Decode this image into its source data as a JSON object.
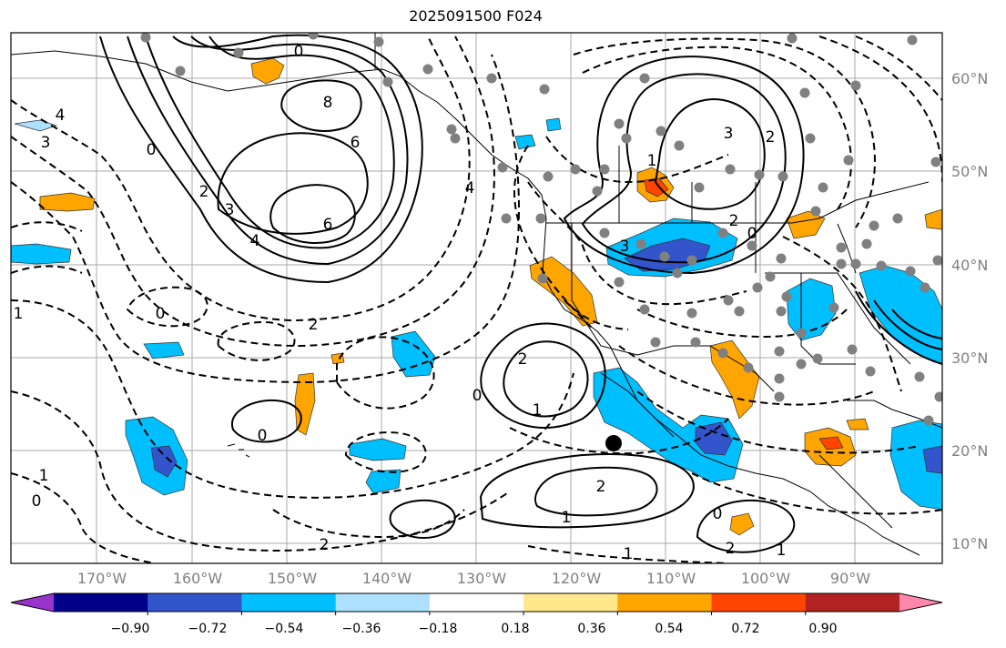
{
  "title": "2025091500 F024",
  "lat_labels": [
    "60°N",
    "50°N",
    "40°N",
    "30°N",
    "20°N",
    "10°N"
  ],
  "lon_labels": [
    "170°W",
    "160°W",
    "150°W",
    "140°W",
    "130°W",
    "120°W",
    "110°W",
    "100°W",
    "90°W"
  ],
  "colorbar": {
    "ticks": [
      "−0.90",
      "−0.72",
      "−0.54",
      "−0.36",
      "−0.18",
      "0.18",
      "0.36",
      "0.54",
      "0.72",
      "0.90"
    ],
    "colors": [
      "#9933cc",
      "#00008b",
      "#3355cc",
      "#00bfff",
      "#aee0ff",
      "#ffffff",
      "#ffe88a",
      "#ffa500",
      "#ff4500",
      "#b22222",
      "#ff88aa"
    ]
  },
  "contour_labels": [
    "0",
    "8",
    "6",
    "6",
    "4",
    "3",
    "2",
    "2",
    "1",
    "0",
    "4",
    "3",
    "0",
    "2",
    "1",
    "3",
    "2",
    "0",
    "2",
    "1",
    "0",
    "2",
    "1",
    "0",
    "1",
    "1",
    "2",
    "0",
    "0",
    "1",
    "3",
    "2",
    "4"
  ],
  "marker_color": "#000000",
  "station_color": "#808080"
}
